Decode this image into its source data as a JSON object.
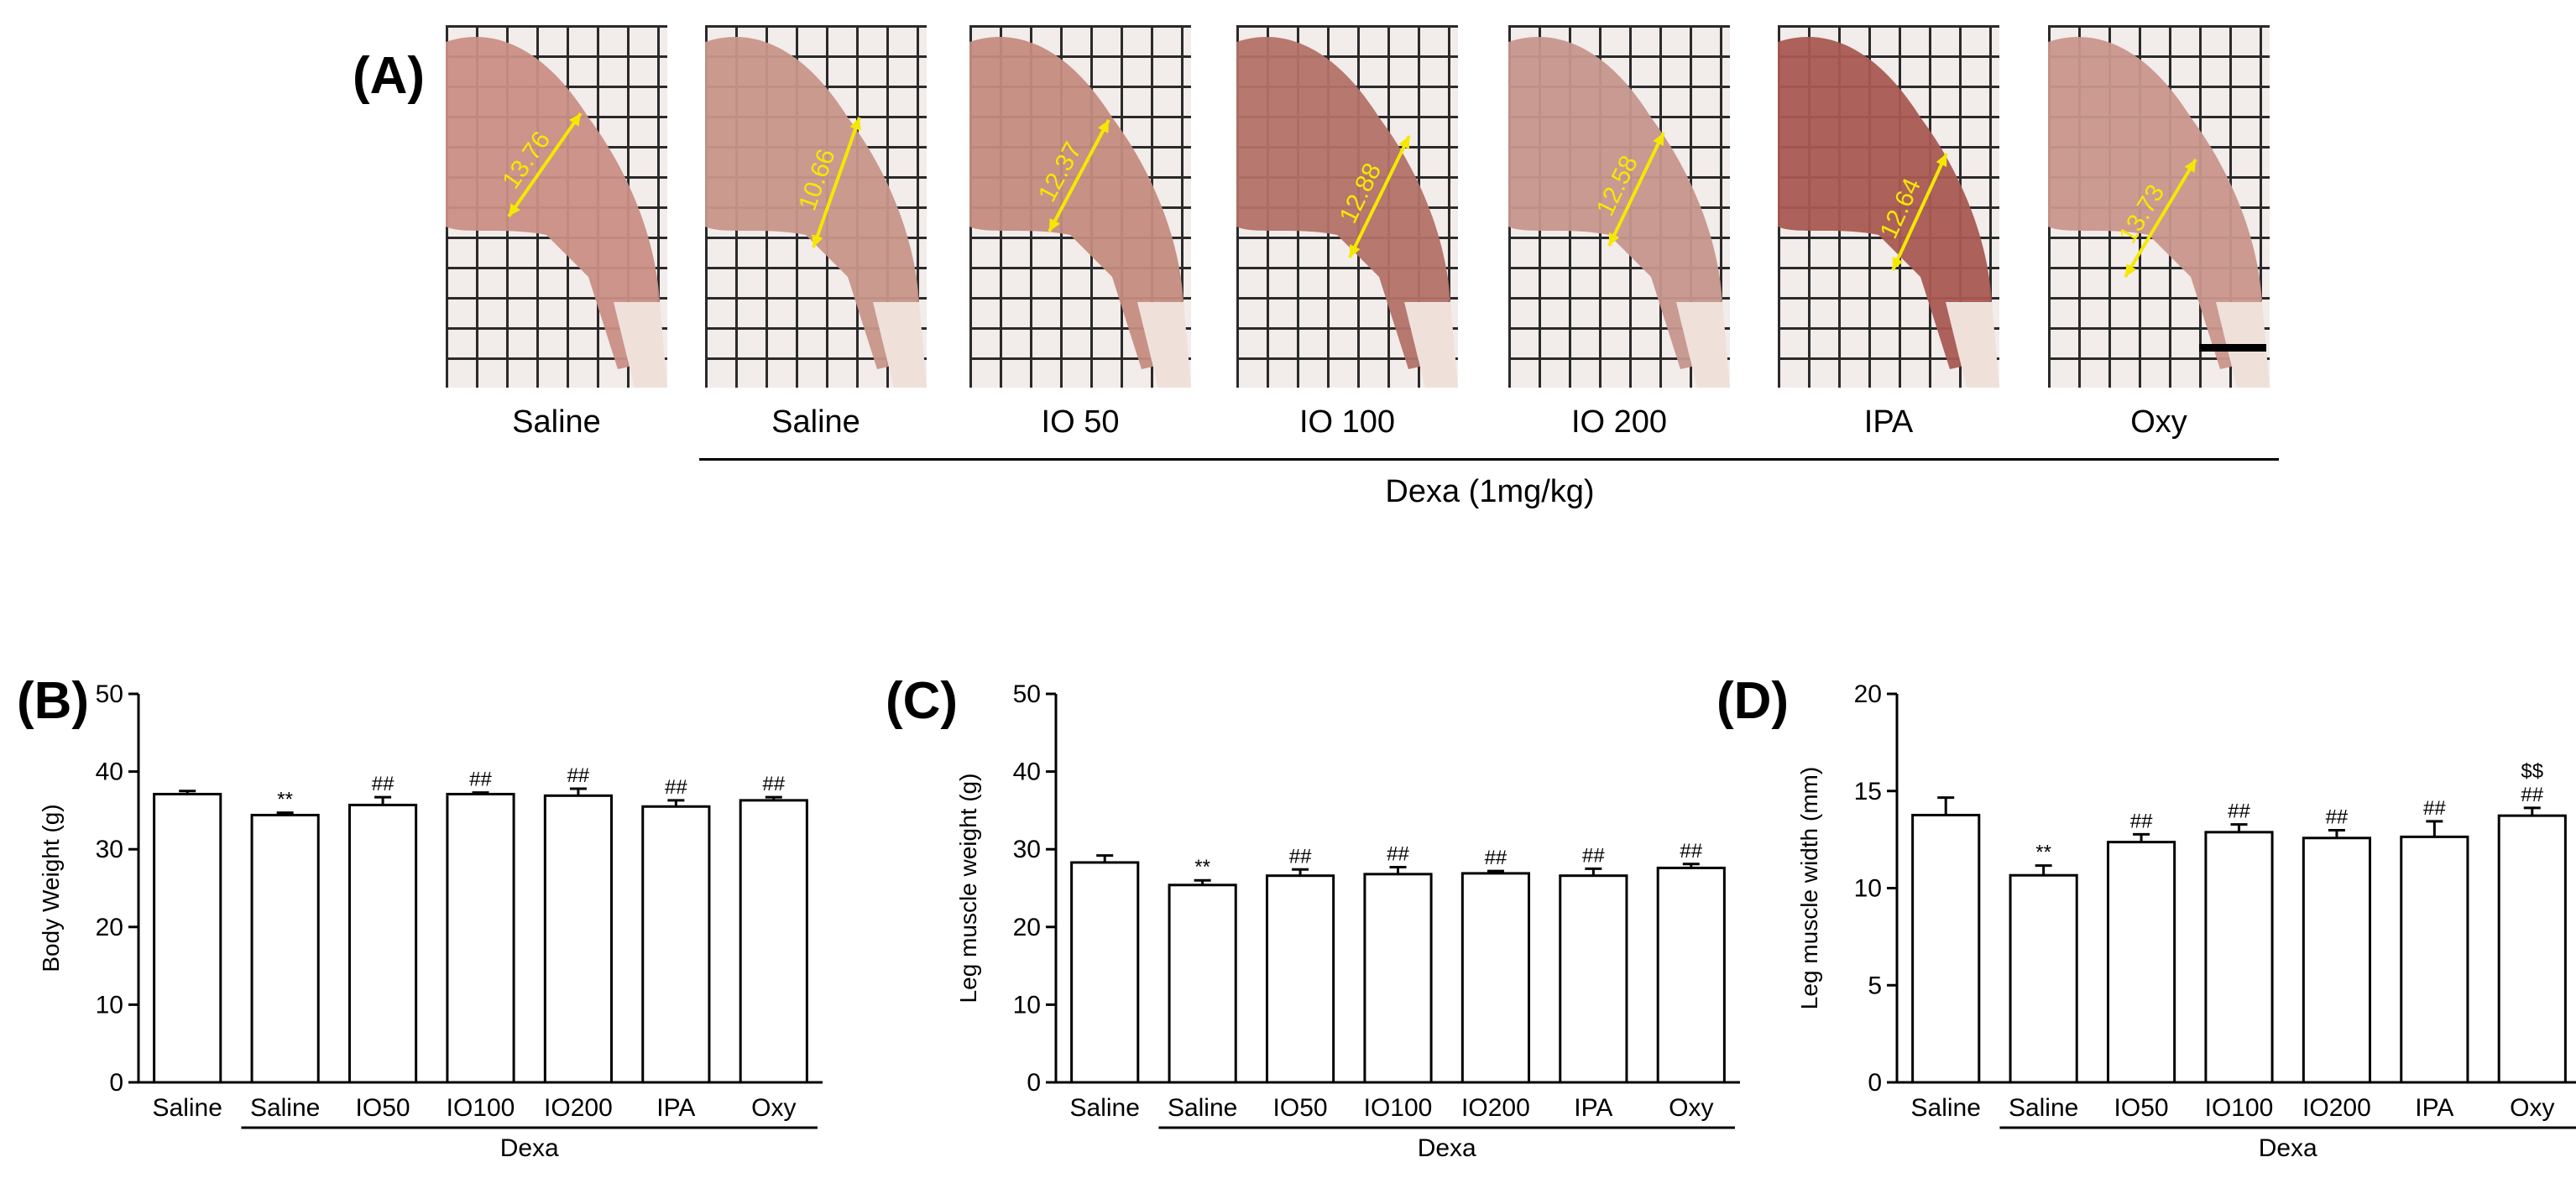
{
  "panel_a": {
    "label": "(A)",
    "photos": [
      {
        "group": "Saline",
        "measurement": "13.76",
        "tissue_color": "#c98f86"
      },
      {
        "group": "Saline",
        "measurement": "10.66",
        "tissue_color": "#c7968a"
      },
      {
        "group": "IO 50",
        "measurement": "12.37",
        "tissue_color": "#c48c80"
      },
      {
        "group": "IO 100",
        "measurement": "12.88",
        "tissue_color": "#b27268"
      },
      {
        "group": "IO 200",
        "measurement": "12.58",
        "tissue_color": "#c5968d"
      },
      {
        "group": "IPA",
        "measurement": "12.64",
        "tissue_color": "#a85a52"
      },
      {
        "group": "Oxy",
        "measurement": "13.73",
        "tissue_color": "#c9968c"
      }
    ],
    "dexa_label": "Dexa (1mg/kg)"
  },
  "colors": {
    "measure_arrow": "#f5e800",
    "bar_fill": "#ffffff",
    "axis": "#000000"
  },
  "chart_data": [
    {
      "panel": "(B)",
      "type": "bar",
      "title": "",
      "ylabel": "Body Weight (g)",
      "xlabel": "",
      "categories": [
        "Saline",
        "Saline",
        "IO50",
        "IO100",
        "IO200",
        "IPA",
        "Oxy"
      ],
      "values": [
        37.1,
        34.4,
        35.7,
        37.1,
        36.9,
        35.5,
        36.3
      ],
      "errors": [
        0.4,
        0.3,
        1.0,
        0.2,
        0.9,
        0.8,
        0.4
      ],
      "annotations": [
        "",
        "**",
        "##",
        "##",
        "##",
        "##",
        "##"
      ],
      "ylim": [
        0,
        50
      ],
      "yticks": [
        0,
        10,
        20,
        30,
        40,
        50
      ],
      "group_label": "Dexa"
    },
    {
      "panel": "(C)",
      "type": "bar",
      "title": "",
      "ylabel": "Leg muscle weight (g)",
      "xlabel": "",
      "categories": [
        "Saline",
        "Saline",
        "IO50",
        "IO100",
        "IO200",
        "IPA",
        "Oxy"
      ],
      "values": [
        28.3,
        25.4,
        26.6,
        26.8,
        26.9,
        26.6,
        27.6
      ],
      "errors": [
        0.9,
        0.6,
        0.8,
        0.9,
        0.3,
        0.9,
        0.5
      ],
      "annotations": [
        "",
        "**",
        "##",
        "##",
        "##",
        "##",
        "##"
      ],
      "ylim": [
        0,
        50
      ],
      "yticks": [
        0,
        10,
        20,
        30,
        40,
        50
      ],
      "group_label": "Dexa"
    },
    {
      "panel": "(D)",
      "type": "bar",
      "title": "",
      "ylabel": "Leg muscle width (mm)",
      "xlabel": "",
      "categories": [
        "Saline",
        "Saline",
        "IO50",
        "IO100",
        "IO200",
        "IPA",
        "Oxy"
      ],
      "values": [
        13.76,
        10.66,
        12.37,
        12.88,
        12.58,
        12.64,
        13.73
      ],
      "errors": [
        0.9,
        0.5,
        0.4,
        0.4,
        0.4,
        0.8,
        0.4
      ],
      "annotations": [
        "",
        "**",
        "##",
        "##",
        "##",
        "##",
        "##"
      ],
      "extra_annotations": [
        "",
        "",
        "",
        "",
        "",
        "",
        "$$"
      ],
      "ylim": [
        0,
        20
      ],
      "yticks": [
        0,
        5,
        10,
        15,
        20
      ],
      "group_label": "Dexa"
    }
  ]
}
